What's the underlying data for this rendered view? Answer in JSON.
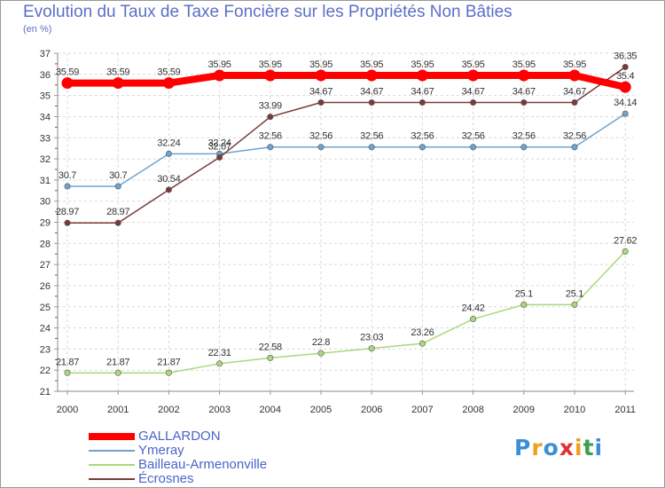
{
  "chart_data": {
    "type": "line",
    "title": "Evolution du Taux de Taxe Foncière sur les Propriétés Non Bâties",
    "subtitle": "(en %)",
    "x": [
      "2000",
      "2001",
      "2002",
      "2003",
      "2004",
      "2005",
      "2006",
      "2007",
      "2008",
      "2009",
      "2010",
      "2011"
    ],
    "ylim": [
      21,
      37
    ],
    "yticks": [
      "21",
      "22",
      "23",
      "24",
      "25",
      "26",
      "27",
      "28",
      "29",
      "30",
      "31",
      "32",
      "33",
      "34",
      "35",
      "36",
      "37"
    ],
    "grid": true,
    "legend_position": "bottom-left",
    "series": [
      {
        "name": "GALLARDON",
        "color": "#ff0000",
        "values": [
          35.59,
          35.59,
          35.59,
          35.95,
          35.95,
          35.95,
          35.95,
          35.95,
          35.95,
          35.95,
          35.95,
          35.4
        ],
        "labels": [
          "35.59",
          "35.59",
          "35.59",
          "35.95",
          "35.95",
          "35.95",
          "35.95",
          "35.95",
          "35.95",
          "35.95",
          "35.95",
          "35.4"
        ]
      },
      {
        "name": "Ymeray",
        "color": "#6fa3cf",
        "values": [
          30.7,
          30.7,
          32.24,
          32.24,
          32.56,
          32.56,
          32.56,
          32.56,
          32.56,
          32.56,
          32.56,
          34.14
        ],
        "labels": [
          "30.7",
          "30.7",
          "32.24",
          "32.24",
          "32.56",
          "32.56",
          "32.56",
          "32.56",
          "32.56",
          "32.56",
          "32.56",
          "34.14"
        ]
      },
      {
        "name": "Bailleau-Armenonville",
        "color": "#a8d97a",
        "values": [
          21.87,
          21.87,
          21.87,
          22.31,
          22.58,
          22.8,
          23.03,
          23.26,
          24.42,
          25.1,
          25.1,
          27.62
        ],
        "labels": [
          "21.87",
          "21.87",
          "21.87",
          "22.31",
          "22.58",
          "22.8",
          "23.03",
          "23.26",
          "24.42",
          "25.1",
          "25.1",
          "27.62"
        ]
      },
      {
        "name": "Écrosnes",
        "color": "#7a3a3a",
        "values": [
          28.97,
          28.97,
          30.54,
          32.07,
          33.99,
          34.67,
          34.67,
          34.67,
          34.67,
          34.67,
          34.67,
          36.35
        ],
        "labels": [
          "28.97",
          "28.97",
          "30.54",
          "32.07",
          "33.99",
          "34.67",
          "34.67",
          "34.67",
          "34.67",
          "34.67",
          "34.67",
          "36.35"
        ]
      }
    ]
  },
  "logo": {
    "text": "Proxiti",
    "letters": [
      {
        "ch": "P",
        "color": "#3a8fd8"
      },
      {
        "ch": "r",
        "color": "#f0a020"
      },
      {
        "ch": "o",
        "color": "#3a8fd8"
      },
      {
        "ch": "x",
        "color": "#e03030"
      },
      {
        "ch": "i",
        "color": "#f0a020"
      },
      {
        "ch": "t",
        "color": "#3aa050"
      },
      {
        "ch": "i",
        "color": "#3a8fd8"
      }
    ]
  }
}
